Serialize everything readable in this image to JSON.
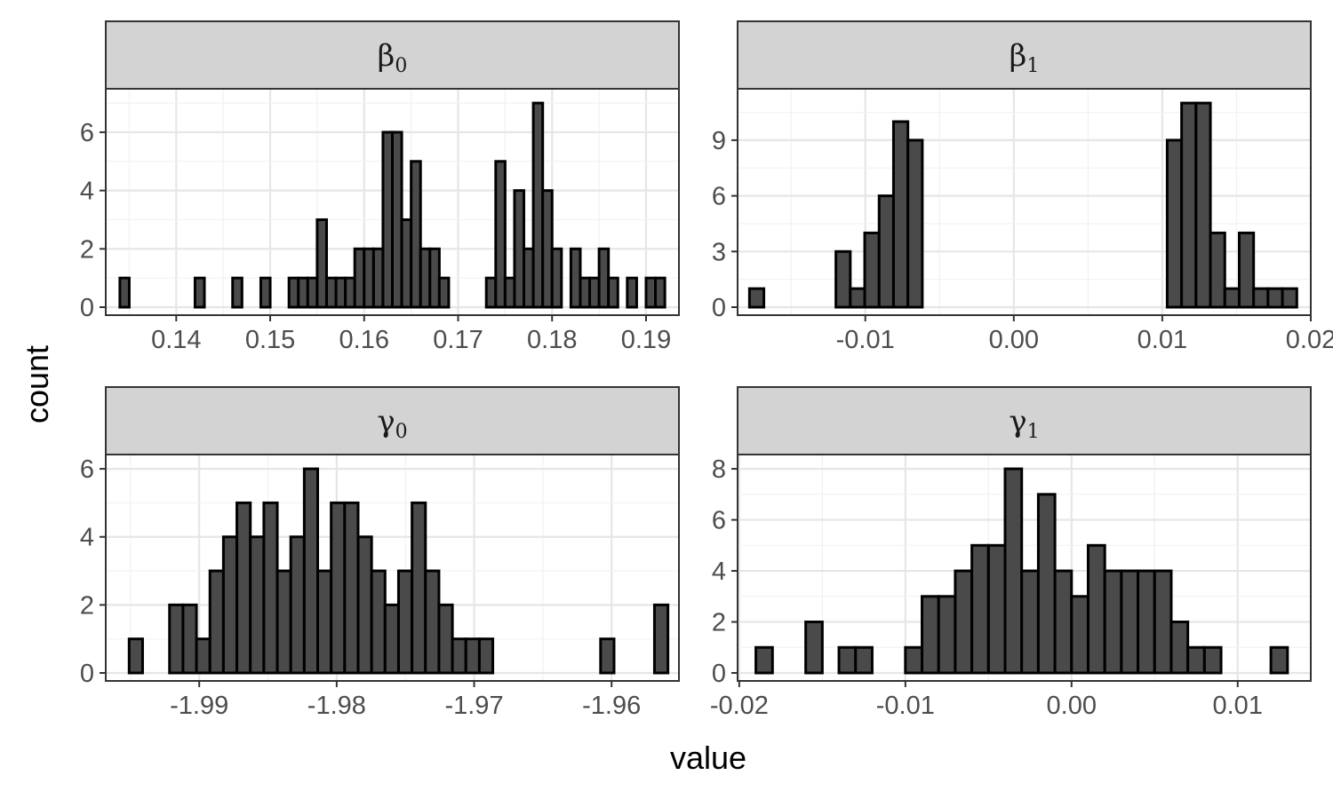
{
  "axis_labels": {
    "x": "value",
    "y": "count"
  },
  "colors": {
    "bar_fill": "#4a4a4a",
    "bar_stroke": "#000000",
    "strip_fill": "#d3d3d3",
    "grid_major": "#e6e6e6",
    "grid_minor": "#f2f2f2",
    "panel_border": "#333333"
  },
  "chart_data": [
    {
      "type": "bar",
      "panel": "beta_0",
      "strip": {
        "symbol": "β",
        "subscript": "0"
      },
      "xlabel": "value",
      "ylabel": "count",
      "xlim": [
        0.1325,
        0.1935
      ],
      "ylim": [
        0,
        7
      ],
      "xticks": [
        0.14,
        0.15,
        0.16,
        0.17,
        0.18,
        0.19
      ],
      "xtick_labels": [
        "0.14",
        "0.15",
        "0.16",
        "0.17",
        "0.18",
        "0.19"
      ],
      "yticks": [
        0,
        2,
        4,
        6
      ],
      "ytick_labels": [
        "0",
        "2",
        "4",
        "6"
      ],
      "bin_start": 0.134,
      "bin_width": 0.001,
      "counts": [
        1,
        0,
        0,
        0,
        0,
        0,
        0,
        0,
        1,
        0,
        0,
        0,
        1,
        0,
        0,
        1,
        0,
        0,
        1,
        1,
        1,
        3,
        1,
        1,
        1,
        2,
        2,
        2,
        6,
        6,
        3,
        5,
        2,
        2,
        1,
        0,
        0,
        0,
        0,
        1,
        5,
        1,
        4,
        2,
        7,
        4,
        2,
        0,
        2,
        1,
        1,
        2,
        1,
        0,
        1,
        0,
        1,
        1
      ]
    },
    {
      "type": "bar",
      "panel": "beta_1",
      "strip": {
        "symbol": "β",
        "subscript": "1"
      },
      "xlabel": "value",
      "ylabel": "count",
      "xlim": [
        -0.0186,
        0.02
      ],
      "ylim": [
        0,
        11
      ],
      "xticks": [
        -0.01,
        0.0,
        0.01,
        0.02
      ],
      "xtick_labels": [
        "-0.01",
        "0.00",
        "0.01",
        "0.02"
      ],
      "yticks": [
        0,
        3,
        6,
        9
      ],
      "ytick_labels": [
        "0",
        "3",
        "6",
        "9"
      ],
      "bin_start": -0.0178,
      "bin_width": 0.00097,
      "counts": [
        1,
        0,
        0,
        0,
        0,
        0,
        3,
        1,
        4,
        6,
        10,
        9,
        0,
        0,
        0,
        0,
        0,
        0,
        0,
        0,
        0,
        0,
        0,
        0,
        0,
        0,
        0,
        0,
        0,
        9,
        11,
        11,
        4,
        1,
        4,
        1,
        1,
        1,
        0,
        0,
        0,
        1
      ]
    },
    {
      "type": "bar",
      "panel": "gamma_0",
      "strip": {
        "symbol": "γ",
        "subscript": "0"
      },
      "xlabel": "value",
      "ylabel": "count",
      "xlim": [
        -1.9968,
        -1.9551
      ],
      "ylim": [
        0,
        6
      ],
      "xticks": [
        -1.99,
        -1.98,
        -1.97,
        -1.96
      ],
      "xtick_labels": [
        "-1.99",
        "-1.98",
        "-1.97",
        "-1.96"
      ],
      "yticks": [
        0,
        2,
        4,
        6
      ],
      "ytick_labels": [
        "0",
        "2",
        "4",
        "6"
      ],
      "bin_start": -1.9951,
      "bin_width": 0.00098,
      "counts": [
        1,
        0,
        0,
        2,
        2,
        1,
        3,
        4,
        5,
        4,
        5,
        3,
        4,
        6,
        3,
        5,
        5,
        4,
        3,
        2,
        3,
        5,
        3,
        2,
        1,
        1,
        1,
        0,
        0,
        0,
        0,
        0,
        0,
        0,
        0,
        1,
        0,
        0,
        0,
        2
      ]
    },
    {
      "type": "bar",
      "panel": "gamma_1",
      "strip": {
        "symbol": "γ",
        "subscript": "1"
      },
      "xlabel": "value",
      "ylabel": "count",
      "xlim": [
        -0.0201,
        0.0144
      ],
      "ylim": [
        0,
        8
      ],
      "xticks": [
        -0.02,
        -0.01,
        0.0,
        0.01
      ],
      "xtick_labels": [
        "-0.02",
        "-0.01",
        "0.00",
        "0.01"
      ],
      "yticks": [
        0,
        2,
        4,
        6,
        8
      ],
      "ytick_labels": [
        "0",
        "2",
        "4",
        "6",
        "8"
      ],
      "bin_start": -0.019,
      "bin_width": 0.001,
      "counts": [
        1,
        0,
        0,
        2,
        0,
        1,
        1,
        0,
        0,
        1,
        3,
        3,
        4,
        5,
        5,
        8,
        4,
        7,
        4,
        3,
        5,
        4,
        4,
        4,
        4,
        2,
        1,
        1,
        0,
        0,
        0,
        1
      ]
    }
  ]
}
